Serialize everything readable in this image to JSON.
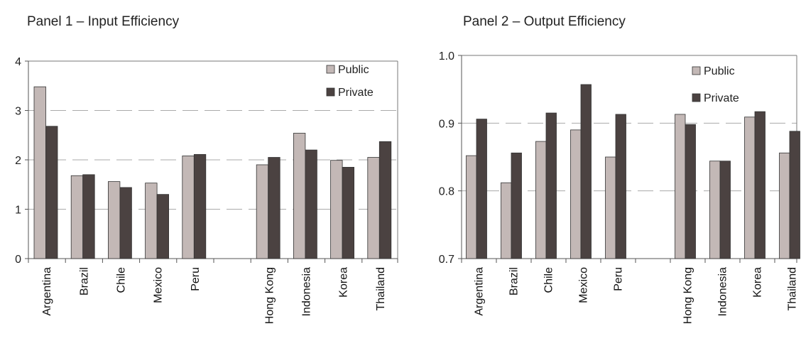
{
  "colors": {
    "public": "#c3b8b6",
    "private": "#4b4241"
  },
  "chart_data": [
    {
      "type": "bar",
      "title": "Panel 1 – Input Efficiency",
      "categories": [
        "Argentina",
        "Brazil",
        "Chile",
        "Mexico",
        "Peru",
        "",
        "Hong Kong",
        "Indonesia",
        "Korea",
        "Thailand"
      ],
      "series": [
        {
          "name": "Public",
          "values": [
            3.48,
            1.68,
            1.56,
            1.53,
            2.08,
            null,
            1.9,
            2.54,
            1.99,
            2.05
          ]
        },
        {
          "name": "Private",
          "values": [
            2.68,
            1.7,
            1.44,
            1.3,
            2.11,
            null,
            2.05,
            2.2,
            1.85,
            2.37
          ]
        }
      ],
      "ylim": [
        0,
        4
      ],
      "yticks": [
        "0",
        "1",
        "2",
        "3",
        "4"
      ],
      "ytick_values": [
        0,
        1,
        2,
        3,
        4
      ],
      "grid": true,
      "legend": "top-right"
    },
    {
      "type": "bar",
      "title": "Panel 2 – Output Efficiency",
      "categories": [
        "Argentina",
        "Brazil",
        "Chile",
        "Mexico",
        "Peru",
        "",
        "Hong Kong",
        "Indonesia",
        "Korea",
        "Thailand"
      ],
      "series": [
        {
          "name": "Public",
          "values": [
            0.852,
            0.812,
            0.873,
            0.89,
            0.85,
            null,
            0.913,
            0.844,
            0.909,
            0.856
          ]
        },
        {
          "name": "Private",
          "values": [
            0.906,
            0.856,
            0.915,
            0.957,
            0.913,
            null,
            0.898,
            0.844,
            0.917,
            0.888
          ]
        }
      ],
      "ylim": [
        0.7,
        1.0
      ],
      "yticks": [
        "0.7",
        "0.8",
        "0.9",
        "1.0"
      ],
      "ytick_values": [
        0.7,
        0.8,
        0.9,
        1.0
      ],
      "grid": true,
      "legend": "top-right"
    }
  ]
}
